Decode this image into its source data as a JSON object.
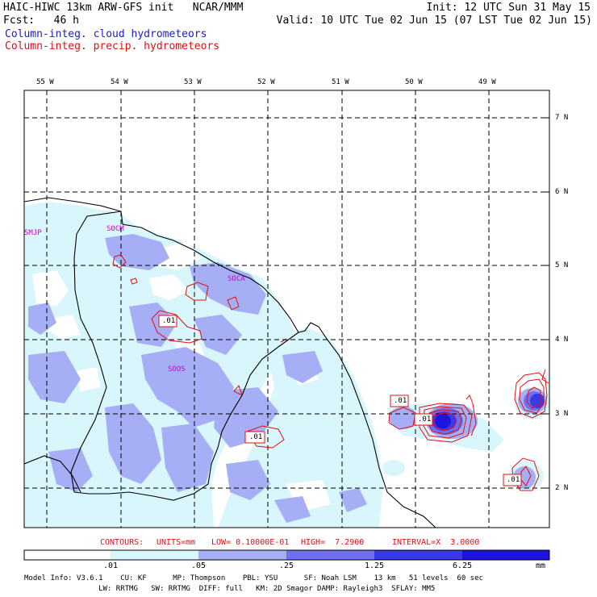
{
  "header": {
    "line1_left": "HAIC-HIWC 13km ARW-GFS init   NCAR/MMM",
    "line1_right": "Init: 12 UTC Sun 31 May 15",
    "line2_left": "Fcst:   46 h",
    "line2_right": "Valid: 10 UTC Tue 02 Jun 15 (07 LST Tue 02 Jun 15)",
    "field1": "Column-integ. cloud hydrometeors",
    "field2": "Column-integ. precip. hydrometeors"
  },
  "colors": {
    "cloud_text": "#1a1ad6",
    "precip_text": "#e01010",
    "shade_1": "#d8f6fb",
    "shade_2": "#a6aff5",
    "shade_3": "#6f6ff0",
    "shade_4": "#3a3ae8",
    "shade_5": "#1e14e0",
    "contour": "#e01010"
  },
  "longitudes": [
    "55 W",
    "54 W",
    "53 W",
    "52 W",
    "51 W",
    "50 W",
    "49 W"
  ],
  "latitudes": [
    "7 N",
    "6 N",
    "5 N",
    "4 N",
    "3 N",
    "2 N"
  ],
  "stations": [
    "SMJP",
    "SOCM",
    "SOCA",
    "SOOS"
  ],
  "contour_labels": [
    ".01",
    ".01",
    ".01",
    ".01",
    ".01"
  ],
  "contour_info": {
    "contours": "CONTOURS:",
    "units": "UNITS=mm",
    "low": "LOW= 0.10000E-01",
    "high": "HIGH=  7.2900",
    "interval": "INTERVAL=X  3.0000"
  },
  "colorbar": {
    "labels": [
      ".01",
      ".05",
      ".25",
      "1.25",
      "6.25"
    ],
    "units": "mm"
  },
  "model_info": {
    "line1": "Model Info: V3.6.1    CU: KF      MP: Thompson    PBL: YSU      SF: Noah LSM    13 km   51 levels  60 sec",
    "line2": "                 LW: RRTMG   SW: RRTMG  DIFF: full   KM: 2D Smagor DAMP: Rayleigh3  SFLAY: MM5"
  }
}
